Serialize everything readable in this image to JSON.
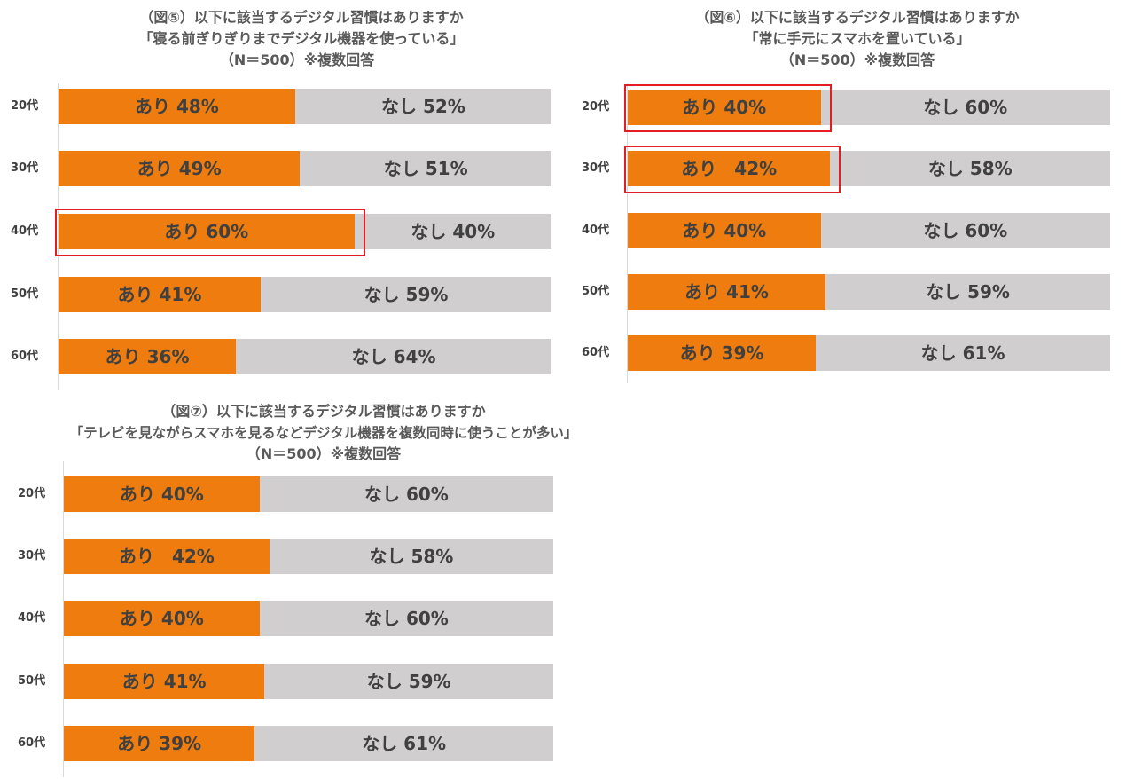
{
  "colors": {
    "yes": "#ee7c0e",
    "no": "#d0cece",
    "highlight": "#e51c23"
  },
  "chart_data": [
    {
      "type": "bar",
      "orientation": "horizontal",
      "stacked": true,
      "normalized_to": 100,
      "title_lines": [
        "（図⑤）以下に該当するデジタル習慣はありますか",
        "「寝る前ぎりぎりまでデジタル機器を使っている」",
        "（N＝500）※複数回答"
      ],
      "categories": [
        "20代",
        "30代",
        "40代",
        "50代",
        "60代"
      ],
      "series": [
        {
          "name": "あり",
          "values": [
            48,
            49,
            60,
            41,
            36
          ],
          "labels": [
            "あり 48%",
            "あり 49%",
            "あり 60%",
            "あり 41%",
            "あり 36%"
          ]
        },
        {
          "name": "なし",
          "values": [
            52,
            51,
            40,
            59,
            64
          ],
          "labels": [
            "なし 52%",
            "なし 51%",
            "なし 40%",
            "なし 59%",
            "なし 64%"
          ]
        }
      ],
      "highlighted_categories": [
        "40代"
      ]
    },
    {
      "type": "bar",
      "orientation": "horizontal",
      "stacked": true,
      "normalized_to": 100,
      "title_lines": [
        "（図⑥）以下に該当するデジタル習慣はありますか",
        "「常に手元にスマホを置いている」",
        "（N＝500）※複数回答"
      ],
      "categories": [
        "20代",
        "30代",
        "40代",
        "50代",
        "60代"
      ],
      "series": [
        {
          "name": "あり",
          "values": [
            40,
            42,
            40,
            41,
            39
          ],
          "labels": [
            "あり 40%",
            "あり　42%",
            "あり 40%",
            "あり 41%",
            "あり 39%"
          ]
        },
        {
          "name": "なし",
          "values": [
            60,
            58,
            60,
            59,
            61
          ],
          "labels": [
            "なし 60%",
            "なし 58%",
            "なし 60%",
            "なし 59%",
            "なし 61%"
          ]
        }
      ],
      "highlighted_categories": [
        "20代",
        "30代"
      ]
    },
    {
      "type": "bar",
      "orientation": "horizontal",
      "stacked": true,
      "normalized_to": 100,
      "title_lines": [
        "（図⑦）以下に該当するデジタル習慣はありますか",
        "「テレビを見ながらスマホを見るなどデジタル機器を複数同時に使うことが多い」",
        "（N＝500）※複数回答"
      ],
      "categories": [
        "20代",
        "30代",
        "40代",
        "50代",
        "60代"
      ],
      "series": [
        {
          "name": "あり",
          "values": [
            40,
            42,
            40,
            41,
            39
          ],
          "labels": [
            "あり 40%",
            "あり　42%",
            "あり 40%",
            "あり 41%",
            "あり 39%"
          ]
        },
        {
          "name": "なし",
          "values": [
            60,
            58,
            60,
            59,
            61
          ],
          "labels": [
            "なし 60%",
            "なし 58%",
            "なし 60%",
            "なし 59%",
            "なし 61%"
          ]
        }
      ],
      "highlighted_categories": []
    }
  ]
}
